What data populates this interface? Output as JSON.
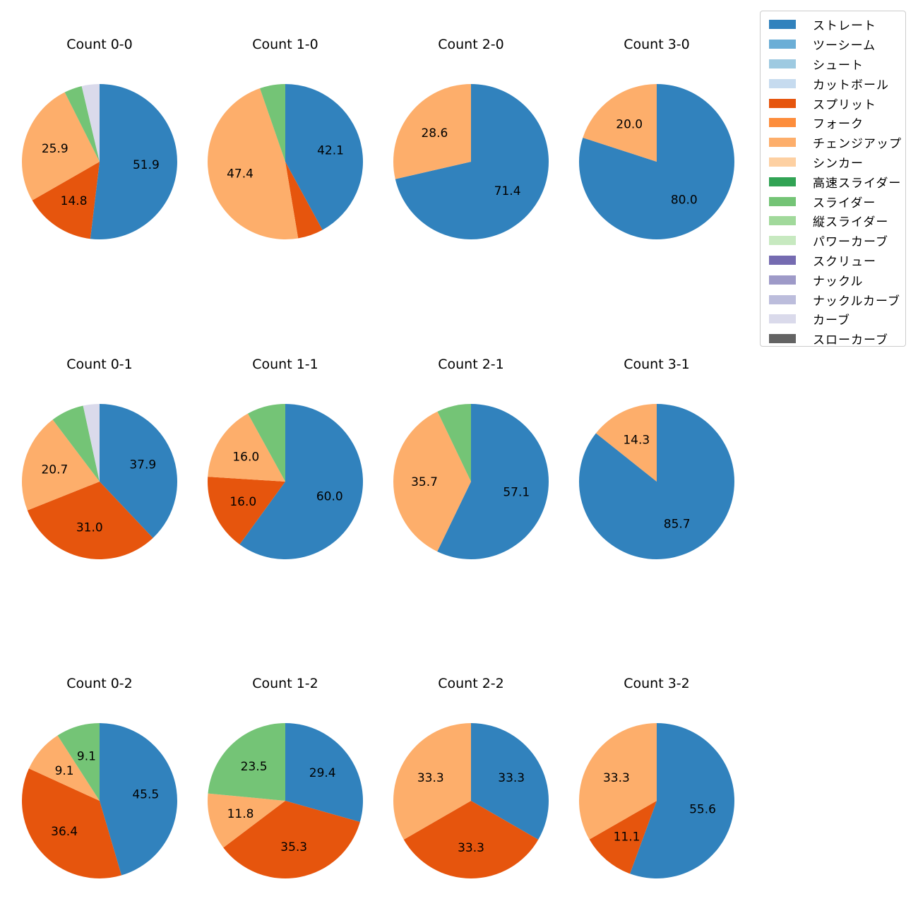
{
  "chart_data": {
    "type": "pie",
    "start_angle_deg": 90,
    "direction": "clockwise",
    "pitch_types": [
      {
        "name": "ストレート",
        "color": "#3182bd"
      },
      {
        "name": "ツーシーム",
        "color": "#6baed6"
      },
      {
        "name": "シュート",
        "color": "#9ecae1"
      },
      {
        "name": "カットボール",
        "color": "#c6dbef"
      },
      {
        "name": "スプリット",
        "color": "#e6550d"
      },
      {
        "name": "フォーク",
        "color": "#fd8d3c"
      },
      {
        "name": "チェンジアップ",
        "color": "#fdae6b"
      },
      {
        "name": "シンカー",
        "color": "#fdd0a2"
      },
      {
        "name": "高速スライダー",
        "color": "#31a354"
      },
      {
        "name": "スライダー",
        "color": "#74c476"
      },
      {
        "name": "縦スライダー",
        "color": "#a1d99b"
      },
      {
        "name": "パワーカーブ",
        "color": "#c7e9c0"
      },
      {
        "name": "スクリュー",
        "color": "#756bb1"
      },
      {
        "name": "ナックル",
        "color": "#9e9ac8"
      },
      {
        "name": "ナックルカーブ",
        "color": "#bcbddc"
      },
      {
        "name": "カーブ",
        "color": "#dadaeb"
      },
      {
        "name": "スローカーブ",
        "color": "#636363"
      }
    ],
    "charts": [
      {
        "title": "Count 0-0",
        "slices": [
          {
            "type": "ストレート",
            "value": 51.9,
            "label": "51.9"
          },
          {
            "type": "スプリット",
            "value": 14.8,
            "label": "14.8"
          },
          {
            "type": "チェンジアップ",
            "value": 25.9,
            "label": "25.9"
          },
          {
            "type": "スライダー",
            "value": 3.7,
            "label": ""
          },
          {
            "type": "カーブ",
            "value": 3.7,
            "label": ""
          }
        ]
      },
      {
        "title": "Count 1-0",
        "slices": [
          {
            "type": "ストレート",
            "value": 42.1,
            "label": "42.1"
          },
          {
            "type": "スプリット",
            "value": 5.3,
            "label": ""
          },
          {
            "type": "チェンジアップ",
            "value": 47.4,
            "label": "47.4"
          },
          {
            "type": "スライダー",
            "value": 5.3,
            "label": ""
          }
        ]
      },
      {
        "title": "Count 2-0",
        "slices": [
          {
            "type": "ストレート",
            "value": 71.4,
            "label": "71.4"
          },
          {
            "type": "チェンジアップ",
            "value": 28.6,
            "label": "28.6"
          }
        ]
      },
      {
        "title": "Count 3-0",
        "slices": [
          {
            "type": "ストレート",
            "value": 80.0,
            "label": "80.0"
          },
          {
            "type": "チェンジアップ",
            "value": 20.0,
            "label": "20.0"
          }
        ]
      },
      {
        "title": "Count 0-1",
        "slices": [
          {
            "type": "ストレート",
            "value": 37.9,
            "label": "37.9"
          },
          {
            "type": "スプリット",
            "value": 31.0,
            "label": "31.0"
          },
          {
            "type": "チェンジアップ",
            "value": 20.7,
            "label": "20.7"
          },
          {
            "type": "スライダー",
            "value": 6.9,
            "label": ""
          },
          {
            "type": "カーブ",
            "value": 3.4,
            "label": ""
          }
        ]
      },
      {
        "title": "Count 1-1",
        "slices": [
          {
            "type": "ストレート",
            "value": 60.0,
            "label": "60.0"
          },
          {
            "type": "スプリット",
            "value": 16.0,
            "label": "16.0"
          },
          {
            "type": "チェンジアップ",
            "value": 16.0,
            "label": "16.0"
          },
          {
            "type": "スライダー",
            "value": 8.0,
            "label": ""
          }
        ]
      },
      {
        "title": "Count 2-1",
        "slices": [
          {
            "type": "ストレート",
            "value": 57.1,
            "label": "57.1"
          },
          {
            "type": "チェンジアップ",
            "value": 35.7,
            "label": "35.7"
          },
          {
            "type": "スライダー",
            "value": 7.1,
            "label": ""
          }
        ]
      },
      {
        "title": "Count 3-1",
        "slices": [
          {
            "type": "ストレート",
            "value": 85.7,
            "label": "85.7"
          },
          {
            "type": "チェンジアップ",
            "value": 14.3,
            "label": "14.3"
          }
        ]
      },
      {
        "title": "Count 0-2",
        "slices": [
          {
            "type": "ストレート",
            "value": 45.5,
            "label": "45.5"
          },
          {
            "type": "スプリット",
            "value": 36.4,
            "label": "36.4"
          },
          {
            "type": "チェンジアップ",
            "value": 9.1,
            "label": "9.1"
          },
          {
            "type": "スライダー",
            "value": 9.1,
            "label": "9.1"
          }
        ]
      },
      {
        "title": "Count 1-2",
        "slices": [
          {
            "type": "ストレート",
            "value": 29.4,
            "label": "29.4"
          },
          {
            "type": "スプリット",
            "value": 35.3,
            "label": "35.3"
          },
          {
            "type": "チェンジアップ",
            "value": 11.8,
            "label": "11.8"
          },
          {
            "type": "スライダー",
            "value": 23.5,
            "label": "23.5"
          }
        ]
      },
      {
        "title": "Count 2-2",
        "slices": [
          {
            "type": "ストレート",
            "value": 33.3,
            "label": "33.3"
          },
          {
            "type": "スプリット",
            "value": 33.3,
            "label": "33.3"
          },
          {
            "type": "チェンジアップ",
            "value": 33.3,
            "label": "33.3"
          }
        ]
      },
      {
        "title": "Count 3-2",
        "slices": [
          {
            "type": "ストレート",
            "value": 55.6,
            "label": "55.6"
          },
          {
            "type": "スプリット",
            "value": 11.1,
            "label": "11.1"
          },
          {
            "type": "チェンジアップ",
            "value": 33.3,
            "label": "33.3"
          }
        ]
      }
    ]
  }
}
